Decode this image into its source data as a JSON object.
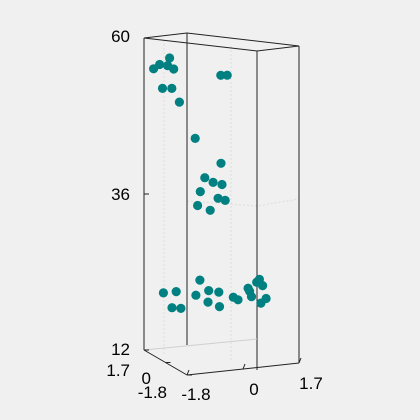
{
  "figure": {
    "background": "#f0f0f0"
  },
  "chart_data": {
    "type": "scatter",
    "projection": "3d",
    "marker_color": "#008080",
    "axis_color": "#222222",
    "grid": true,
    "title": "",
    "xlabel": "",
    "ylabel": "",
    "zlabel": "",
    "xlim": [
      -1.8,
      1.7
    ],
    "ylim": [
      -1.8,
      1.7
    ],
    "zlim": [
      12,
      60
    ],
    "x_ticks": [
      "-1.8",
      "0",
      "1.7"
    ],
    "y_ticks": [
      "-1.8",
      "0",
      "1.7"
    ],
    "z_ticks": [
      "12",
      "36",
      "60"
    ],
    "clusters": [
      {
        "name": "",
        "points": [
          [
            -1.5,
            1.7,
            55.1
          ],
          [
            -1.35,
            1.6,
            55.8
          ],
          [
            -1.1,
            1.6,
            55.5
          ],
          [
            -1.0,
            1.7,
            56.5
          ],
          [
            -0.95,
            1.5,
            55.0
          ],
          [
            -1.3,
            1.5,
            52.2
          ],
          [
            -1.2,
            1.0,
            52.7
          ],
          [
            -1.0,
            0.9,
            50.6
          ],
          [
            0.6,
            1.7,
            53.0
          ],
          [
            0.8,
            1.7,
            52.9
          ],
          [
            -0.7,
            0.4,
            45.4
          ],
          [
            -0.4,
            0.4,
            39.2
          ],
          [
            -0.1,
            0.5,
            38.2
          ],
          [
            0.1,
            0.3,
            38.0
          ],
          [
            -0.5,
            0.5,
            37.0
          ],
          [
            0.3,
            0.9,
            40.5
          ],
          [
            -0.1,
            0.1,
            36.2
          ],
          [
            0.2,
            0.3,
            35.5
          ],
          [
            -0.5,
            -0.3,
            35.0
          ],
          [
            -0.7,
            0.2,
            35.3
          ]
        ]
      },
      {
        "name": "",
        "points": [
          [
            -1.5,
            0.9,
            21.5
          ],
          [
            -1.1,
            0.9,
            21.5
          ],
          [
            -1.3,
            0.0,
            20.0
          ],
          [
            -1.5,
            0.2,
            20.0
          ],
          [
            -0.6,
            0.6,
            21.0
          ],
          [
            -0.2,
            0.6,
            21.5
          ],
          [
            -0.3,
            0.4,
            20.0
          ],
          [
            0.1,
            0.5,
            19.0
          ],
          [
            -0.4,
            0.8,
            23.0
          ],
          [
            0.0,
            0.3,
            21.5
          ],
          [
            0.3,
            -0.1,
            21.0
          ],
          [
            0.8,
            0.0,
            22.0
          ],
          [
            0.6,
            0.3,
            20.0
          ],
          [
            1.0,
            0.4,
            21.0
          ],
          [
            1.2,
            0.0,
            19.5
          ],
          [
            1.4,
            0.1,
            20.0
          ],
          [
            1.1,
            0.5,
            20.0
          ],
          [
            1.3,
            0.6,
            22.0
          ],
          [
            1.5,
            0.9,
            22.0
          ],
          [
            1.6,
            0.9,
            21.0
          ]
        ]
      }
    ]
  }
}
